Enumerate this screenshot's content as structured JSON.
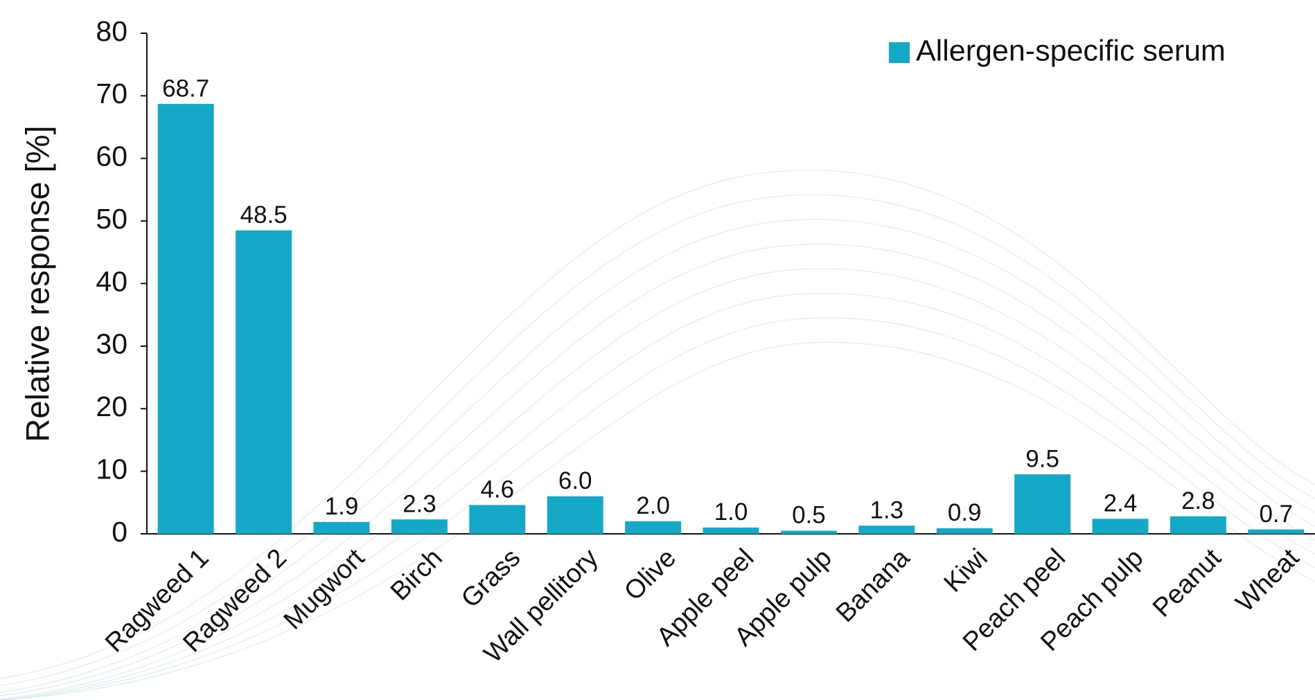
{
  "chart_data": {
    "type": "bar",
    "y_axis_label": "Relative response [%]",
    "categories": [
      "Ragweed 1",
      "Ragweed 2",
      "Mugwort",
      "Birch",
      "Grass",
      "Wall pellitory",
      "Olive",
      "Apple peel",
      "Apple pulp",
      "Banana",
      "Kiwi",
      "Peach peel",
      "Peach pulp",
      "Peanut",
      "Wheat"
    ],
    "series": [
      {
        "name": "Allergen-specific serum",
        "color": "#13a8c6",
        "values": [
          68.7,
          48.5,
          1.9,
          2.3,
          4.6,
          6.0,
          2.0,
          1.0,
          0.5,
          1.3,
          0.9,
          9.5,
          2.4,
          2.8,
          0.7
        ],
        "value_labels": [
          "68.7",
          "48.5",
          "1.9",
          "2.3",
          "4.6",
          "6.0",
          "2.0",
          "1.0",
          "0.5",
          "1.3",
          "0.9",
          "9.5",
          "2.4",
          "2.8",
          "0.7"
        ]
      }
    ],
    "ylim": [
      0,
      80
    ],
    "yticks": [
      0,
      10,
      20,
      30,
      40,
      50,
      60,
      70,
      80
    ],
    "legend": "top-right"
  }
}
